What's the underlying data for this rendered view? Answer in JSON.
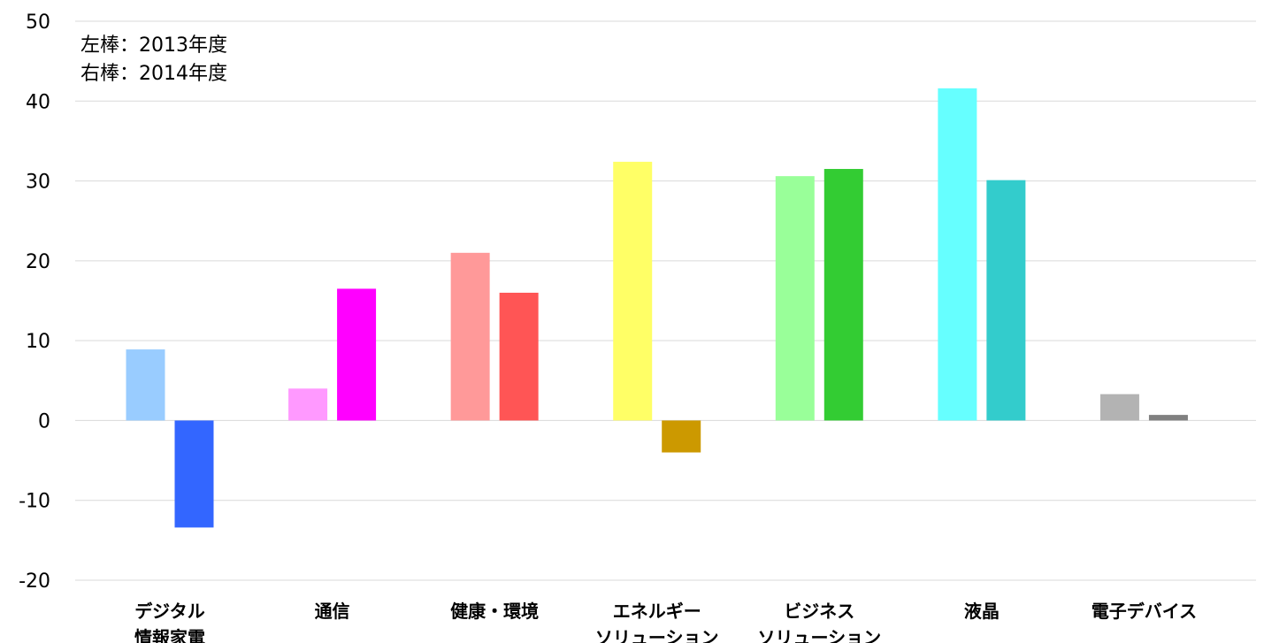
{
  "chart_data": {
    "type": "bar",
    "title": "",
    "xlabel": "",
    "ylabel": "",
    "ylim": [
      -20,
      50
    ],
    "yticks": [
      -20,
      -10,
      0,
      10,
      20,
      30,
      40,
      50
    ],
    "grid": true,
    "annotations": [
      "左棒：2013年度",
      "右棒：2014年度"
    ],
    "categories": [
      [
        "デジタル",
        "情報家電"
      ],
      [
        "通信"
      ],
      [
        "健康・環境"
      ],
      [
        "エネルギー",
        "ソリューション"
      ],
      [
        "ビジネス",
        "ソリューション"
      ],
      [
        "液晶"
      ],
      [
        "電子デバイス"
      ]
    ],
    "series": [
      {
        "values": [
          8.9,
          4.0,
          21.0,
          32.4,
          30.6,
          41.6,
          3.3
        ],
        "colors": [
          "#99ccff",
          "#ff99ff",
          "#ff9999",
          "#ffff66",
          "#99ff99",
          "#66ffff",
          "#b3b3b3"
        ]
      },
      {
        "values": [
          -13.4,
          16.5,
          16.0,
          -4.0,
          31.5,
          30.1,
          0.7
        ],
        "colors": [
          "#3366ff",
          "#ff00ff",
          "#ff5555",
          "#cc9900",
          "#33cc33",
          "#33cccc",
          "#808080"
        ]
      }
    ]
  }
}
